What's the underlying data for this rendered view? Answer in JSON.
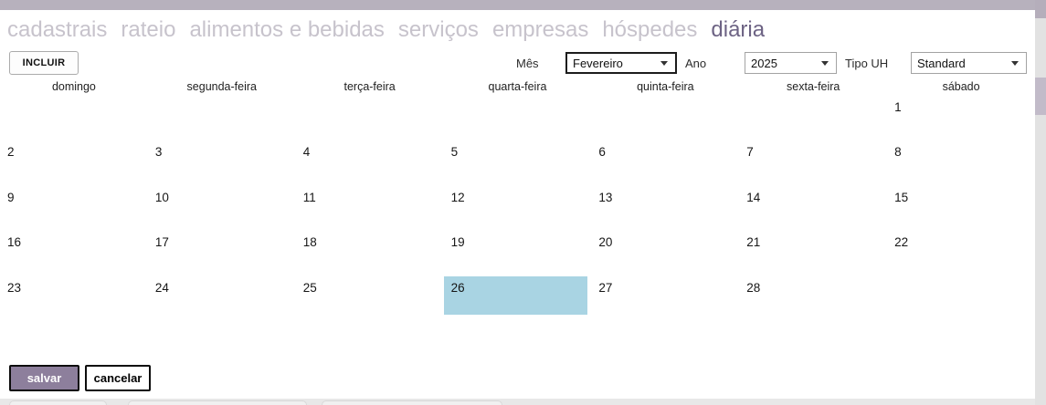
{
  "tabs": {
    "items": [
      {
        "label": "cadastrais",
        "active": false
      },
      {
        "label": "rateio",
        "active": false
      },
      {
        "label": "alimentos e bebidas",
        "active": false
      },
      {
        "label": "serviços",
        "active": false
      },
      {
        "label": "empresas",
        "active": false
      },
      {
        "label": "hóspedes",
        "active": false
      },
      {
        "label": "diária",
        "active": true
      }
    ]
  },
  "toolbar": {
    "incluir_label": "INCLUIR",
    "mes_label": "Mês",
    "mes_value": "Fevereiro",
    "ano_label": "Ano",
    "ano_value": "2025",
    "tipo_uh_label": "Tipo UH",
    "tipo_uh_value": "Standard"
  },
  "calendar": {
    "month": "Fevereiro",
    "year": "2025",
    "weekdays": [
      "domingo",
      "segunda-feira",
      "terça-feira",
      "quarta-feira",
      "quinta-feira",
      "sexta-feira",
      "sábado"
    ],
    "weeks": [
      [
        "",
        "",
        "",
        "",
        "",
        "",
        "1"
      ],
      [
        "2",
        "3",
        "4",
        "5",
        "6",
        "7",
        "8"
      ],
      [
        "9",
        "10",
        "11",
        "12",
        "13",
        "14",
        "15"
      ],
      [
        "16",
        "17",
        "18",
        "19",
        "20",
        "21",
        "22"
      ],
      [
        "23",
        "24",
        "25",
        "26",
        "27",
        "28",
        ""
      ]
    ],
    "selected_day": "26"
  },
  "footer": {
    "salvar_label": "salvar",
    "cancelar_label": "cancelar"
  },
  "colors": {
    "active_tab": "#6d6384",
    "inactive_tab": "#c7c3cc",
    "selected_day_bg": "#a9d4e3",
    "salvar_bg": "#8d7f9c",
    "top_bar": "#b7b1bd",
    "scroll_thumb": "#c2bbc9"
  }
}
